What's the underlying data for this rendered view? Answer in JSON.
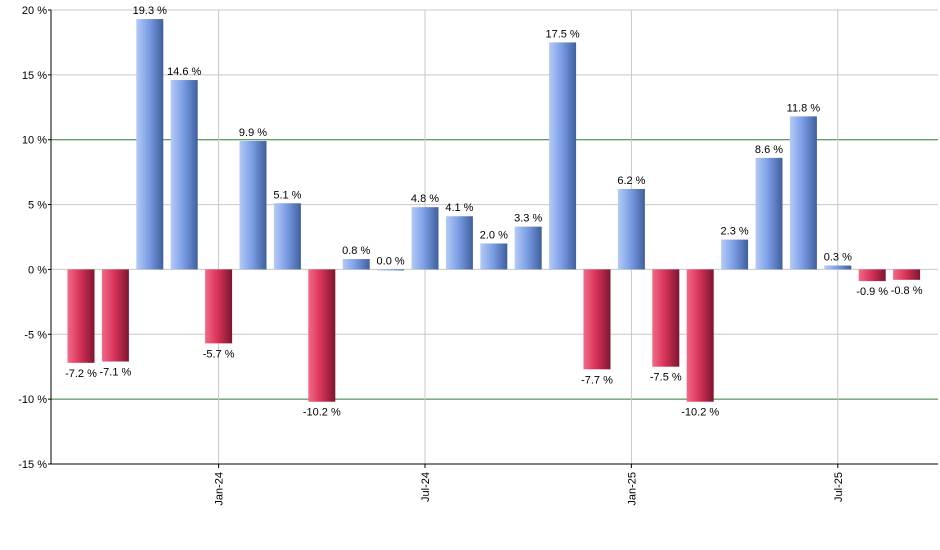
{
  "chart_data": {
    "type": "bar",
    "title": "",
    "xlabel": "",
    "ylabel": "",
    "ylim": [
      -15,
      20
    ],
    "y_ticks": [
      -15,
      -10,
      -5,
      0,
      5,
      10,
      15,
      20
    ],
    "y_tick_labels": [
      "-15 %",
      "-10 %",
      "-5 %",
      "0 %",
      "5 %",
      "10 %",
      "15 %",
      "20 %"
    ],
    "highlight_lines": [
      10,
      -10
    ],
    "x_tick_labels": [
      {
        "label": "Jan-24",
        "index": 4
      },
      {
        "label": "Jul-24",
        "index": 10
      },
      {
        "label": "Jan-25",
        "index": 16
      },
      {
        "label": "Jul-25",
        "index": 22
      }
    ],
    "values": [
      -7.2,
      -7.1,
      19.3,
      14.6,
      -5.7,
      9.9,
      5.1,
      -10.2,
      0.8,
      0.0,
      4.8,
      4.1,
      2.0,
      3.3,
      17.5,
      -7.7,
      6.2,
      -7.5,
      -10.2,
      2.3,
      8.6,
      11.8,
      0.3,
      -0.9,
      -0.8
    ],
    "labels": [
      "-7.2 %",
      "-7.1 %",
      "19.3 %",
      "14.6 %",
      "-5.7 %",
      "9.9 %",
      "5.1 %",
      "-10.2 %",
      "0.8 %",
      "0.0 %",
      "4.8 %",
      "4.1 %",
      "2.0 %",
      "3.3 %",
      "17.5 %",
      "-7.7 %",
      "6.2 %",
      "-7.5 %",
      "-10.2 %",
      "2.3 %",
      "8.6 %",
      "11.8 %",
      "0.3 %",
      "-0.9 %",
      "-0.8 %"
    ],
    "colors": {
      "positive_light": "#b4cbf6",
      "positive_mid": "#7d9fe6",
      "positive_dark": "#3f5f9e",
      "negative_light": "#f26a86",
      "negative_mid": "#d9345a",
      "negative_dark": "#7e1530",
      "grid": "#c8c8c8",
      "highlight": "#2e7d32",
      "axis": "#000000"
    }
  }
}
